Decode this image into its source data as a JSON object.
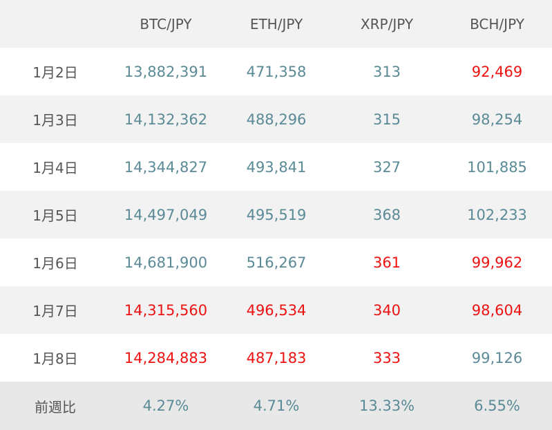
{
  "colors": {
    "up": "#5a8a96",
    "down": "#ee1111",
    "label": "#555555",
    "header_bg": "#f2f2f2",
    "stripe_bg": "#f2f2f2"
  },
  "header": {
    "corner": "",
    "columns": [
      "BTC/JPY",
      "ETH/JPY",
      "XRP/JPY",
      "BCH/JPY"
    ]
  },
  "rows": [
    {
      "date": "1月2日",
      "values": [
        "13,882,391",
        "471,358",
        "313",
        "92,469"
      ],
      "trend": [
        "up",
        "up",
        "up",
        "down"
      ]
    },
    {
      "date": "1月3日",
      "values": [
        "14,132,362",
        "488,296",
        "315",
        "98,254"
      ],
      "trend": [
        "up",
        "up",
        "up",
        "up"
      ]
    },
    {
      "date": "1月4日",
      "values": [
        "14,344,827",
        "493,841",
        "327",
        "101,885"
      ],
      "trend": [
        "up",
        "up",
        "up",
        "up"
      ]
    },
    {
      "date": "1月5日",
      "values": [
        "14,497,049",
        "495,519",
        "368",
        "102,233"
      ],
      "trend": [
        "up",
        "up",
        "up",
        "up"
      ]
    },
    {
      "date": "1月6日",
      "values": [
        "14,681,900",
        "516,267",
        "361",
        "99,962"
      ],
      "trend": [
        "up",
        "up",
        "down",
        "down"
      ]
    },
    {
      "date": "1月7日",
      "values": [
        "14,315,560",
        "496,534",
        "340",
        "98,604"
      ],
      "trend": [
        "down",
        "down",
        "down",
        "down"
      ]
    },
    {
      "date": "1月8日",
      "values": [
        "14,284,883",
        "487,183",
        "333",
        "99,126"
      ],
      "trend": [
        "down",
        "down",
        "down",
        "up"
      ]
    }
  ],
  "summary": {
    "label": "前週比",
    "values": [
      "4.27%",
      "4.71%",
      "13.33%",
      "6.55%"
    ]
  }
}
